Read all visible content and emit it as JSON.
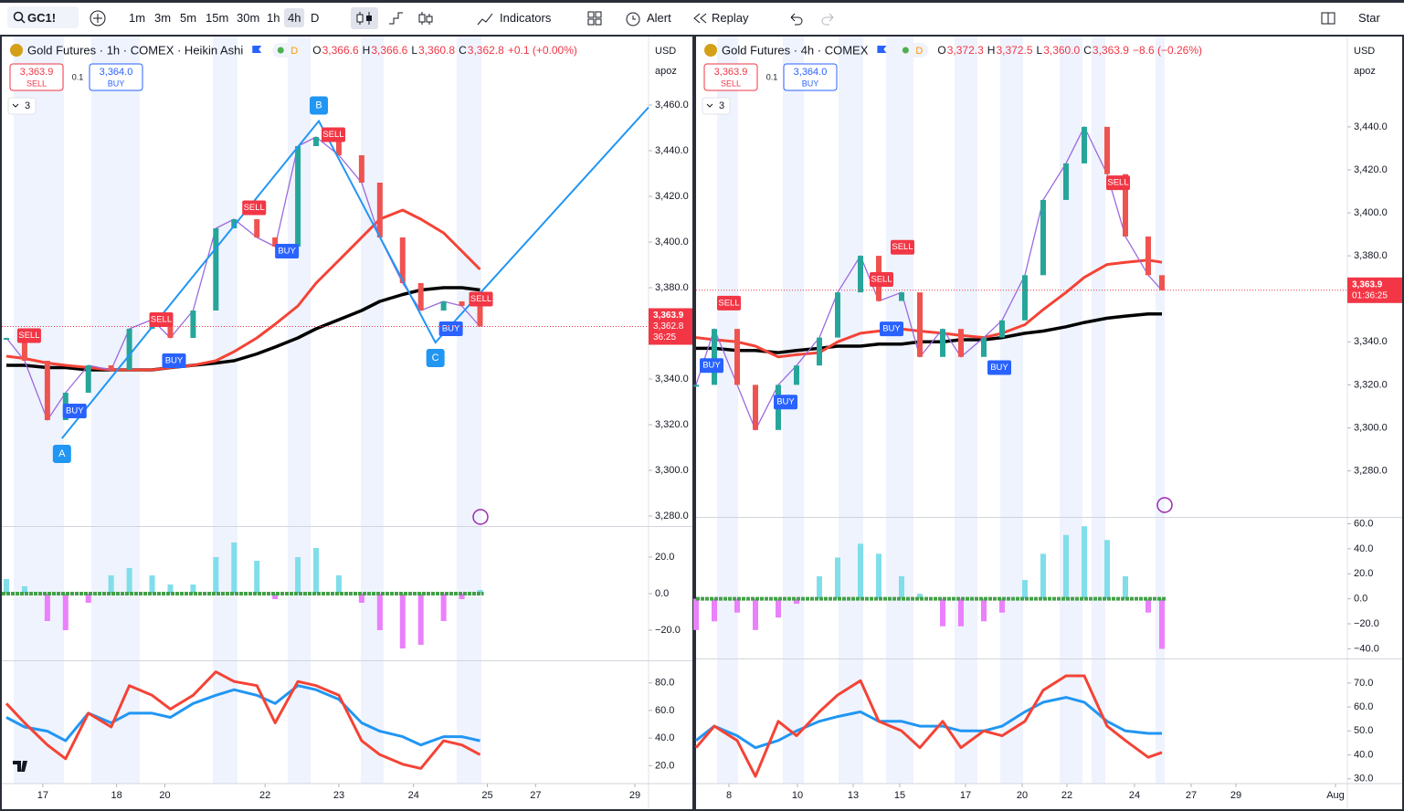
{
  "toolbar": {
    "symbol": "GC1!",
    "intervals": [
      "1m",
      "3m",
      "5m",
      "15m",
      "30m",
      "1h",
      "4h",
      "D"
    ],
    "active_interval_index": 6,
    "buttons": {
      "indicators": "Indicators",
      "alert": "Alert",
      "replay": "Replay",
      "star": "Star"
    }
  },
  "panels": [
    {
      "title": "Gold Futures · 1h · COMEX · Heikin Ashi",
      "badge": "D",
      "ohlc": [
        [
          "O",
          "3,366.6"
        ],
        [
          "H",
          "3,366.6"
        ],
        [
          "L",
          "3,360.8"
        ],
        [
          "C",
          "3,362.8"
        ]
      ],
      "change": "+0.1 (+0.00%)",
      "sell": {
        "price": "3,363.9",
        "label": "SELL"
      },
      "spread": "0.1",
      "buy": {
        "price": "3,364.0",
        "label": "BUY"
      },
      "currency": "USD",
      "scale_mode": "apoz",
      "indicator_count": "3",
      "last_price_labels": [
        "3,363.9",
        "3,362.8",
        "36:25"
      ],
      "xlim": [
        0,
        142
      ],
      "xticks": [
        {
          "value": 9,
          "label": "17"
        },
        {
          "value": 25.2,
          "label": "18"
        },
        {
          "value": 35.8,
          "label": "20"
        },
        {
          "value": 57.8,
          "label": "22"
        },
        {
          "value": 74,
          "label": "23"
        },
        {
          "value": 90.4,
          "label": "24"
        },
        {
          "value": 106.6,
          "label": "25"
        },
        {
          "value": 117.2,
          "label": "27"
        },
        {
          "value": 139,
          "label": "29"
        }
      ],
      "x": [
        1,
        5,
        10,
        14,
        19,
        24,
        28,
        33,
        37,
        42,
        47,
        51,
        56,
        60,
        65,
        69,
        74,
        79,
        83,
        88,
        92,
        97,
        101,
        105
      ],
      "price": {
        "ylim": [
          3276,
          3490
        ],
        "yticks": [
          {
            "value": 3280,
            "label": "3,280.0"
          },
          {
            "value": 3300,
            "label": "3,300.0"
          },
          {
            "value": 3320,
            "label": "3,320.0"
          },
          {
            "value": 3340,
            "label": "3,340.0"
          },
          {
            "value": 3360,
            "label": "3,360.0"
          },
          {
            "value": 3380,
            "label": "3,380.0"
          },
          {
            "value": 3400,
            "label": "3,400.0"
          },
          {
            "value": 3420,
            "label": "3,420.0"
          },
          {
            "value": 3440,
            "label": "3,440.0"
          },
          {
            "value": 3460,
            "label": "3,460.0"
          }
        ],
        "close": [
          3358,
          3348,
          3322,
          3334,
          3346,
          3344,
          3362,
          3366,
          3358,
          3370,
          3406,
          3410,
          3402,
          3398,
          3442,
          3446,
          3438,
          3426,
          3402,
          3382,
          3370,
          3374,
          3372,
          3363
        ],
        "ma_red": [
          3350,
          3349,
          3347,
          3346,
          3345,
          3344,
          3344,
          3344,
          3345,
          3346,
          3348,
          3352,
          3358,
          3364,
          3372,
          3382,
          3392,
          3402,
          3410,
          3414,
          3410,
          3404,
          3396,
          3388
        ],
        "ma_black": [
          3346,
          3346,
          3345,
          3345,
          3344,
          3344,
          3344,
          3344,
          3345,
          3346,
          3347,
          3348,
          3351,
          3354,
          3358,
          3362,
          3366,
          3370,
          3374,
          3377,
          3379,
          3380,
          3380,
          3379
        ]
      },
      "signals": [
        {
          "label": "SELL",
          "x": 6,
          "price": 3359
        },
        {
          "label": "BUY",
          "x": 16,
          "price": 3326
        },
        {
          "label": "SELL",
          "x": 35,
          "price": 3366
        },
        {
          "label": "BUY",
          "x": 37.8,
          "price": 3348
        },
        {
          "label": "SELL",
          "x": 55.4,
          "price": 3415
        },
        {
          "label": "BUY",
          "x": 62.6,
          "price": 3396
        },
        {
          "label": "SELL",
          "x": 72.8,
          "price": 3447
        },
        {
          "label": "BUY",
          "x": 98.6,
          "price": 3362
        },
        {
          "label": "SELL",
          "x": 105.2,
          "price": 3375
        }
      ],
      "pattern": [
        {
          "label": "A",
          "x": 13.2,
          "price": 3314
        },
        {
          "label": "B",
          "x": 69.6,
          "price": 3453
        },
        {
          "label": "C",
          "x": 95.2,
          "price": 3356
        },
        {
          "x": 142,
          "price": 3459
        }
      ],
      "macd": {
        "ylim": [
          -36,
          36
        ],
        "yticks": [
          {
            "value": 20,
            "label": "20.0"
          },
          {
            "value": 0,
            "label": "0.0"
          },
          {
            "value": -20,
            "label": "−20.0"
          }
        ],
        "values": [
          8,
          4,
          -15,
          -20,
          -5,
          10,
          14,
          10,
          5,
          5,
          20,
          28,
          18,
          -3,
          20,
          25,
          10,
          -5,
          -20,
          -30,
          -28,
          -15,
          -3,
          2
        ]
      },
      "rsi": {
        "ylim": [
          7,
          95
        ],
        "yticks": [
          {
            "value": 80,
            "label": "80.0"
          },
          {
            "value": 60,
            "label": "60.0"
          },
          {
            "value": 40,
            "label": "40.0"
          },
          {
            "value": 20,
            "label": "20.0"
          }
        ],
        "red": [
          65,
          51,
          35,
          25,
          58,
          48,
          78,
          71,
          61,
          71,
          88,
          81,
          78,
          51,
          81,
          78,
          71,
          38,
          28,
          21,
          18,
          38,
          35,
          28
        ],
        "blue": [
          55,
          48,
          45,
          38,
          58,
          51,
          58,
          58,
          55,
          65,
          71,
          75,
          71,
          65,
          78,
          75,
          68,
          51,
          45,
          41,
          35,
          41,
          41,
          38
        ]
      }
    },
    {
      "title": "Gold Futures · 4h · COMEX",
      "badge": "D",
      "ohlc": [
        [
          "O",
          "3,372.3"
        ],
        [
          "H",
          "3,372.5"
        ],
        [
          "L",
          "3,360.0"
        ],
        [
          "C",
          "3,363.9"
        ]
      ],
      "change": "−8.6 (−0.26%)",
      "sell": {
        "price": "3,363.9",
        "label": "SELL"
      },
      "spread": "0.1",
      "buy": {
        "price": "3,364.0",
        "label": "BUY"
      },
      "currency": "USD",
      "scale_mode": "apoz",
      "indicator_count": "3",
      "last_price_labels": [
        "3,363.9",
        "01:36:25"
      ],
      "xlim": [
        0,
        142.6
      ],
      "xticks": [
        {
          "value": 7.2,
          "label": "8"
        },
        {
          "value": 22.2,
          "label": "10"
        },
        {
          "value": 34.4,
          "label": "13"
        },
        {
          "value": 44.6,
          "label": "15"
        },
        {
          "value": 59,
          "label": "17"
        },
        {
          "value": 71.4,
          "label": "20"
        },
        {
          "value": 81.2,
          "label": "22"
        },
        {
          "value": 96,
          "label": "24"
        },
        {
          "value": 108.4,
          "label": "27"
        },
        {
          "value": 118.2,
          "label": "29"
        },
        {
          "value": 140,
          "label": "Aug"
        }
      ],
      "x": [
        0,
        4,
        9,
        13,
        18,
        22,
        27,
        31,
        36,
        40,
        45,
        49,
        54,
        58,
        63,
        67,
        72,
        76,
        81,
        85,
        90,
        94,
        99,
        102
      ],
      "price": {
        "ylim": [
          3259,
          3482
        ],
        "yticks": [
          {
            "value": 3280,
            "label": "3,280.0"
          },
          {
            "value": 3300,
            "label": "3,300.0"
          },
          {
            "value": 3320,
            "label": "3,320.0"
          },
          {
            "value": 3340,
            "label": "3,340.0"
          },
          {
            "value": 3360,
            "label": "3,360.0"
          },
          {
            "value": 3380,
            "label": "3,380.0"
          },
          {
            "value": 3400,
            "label": "3,400.0"
          },
          {
            "value": 3420,
            "label": "3,420.0"
          },
          {
            "value": 3440,
            "label": "3,440.0"
          }
        ],
        "close": [
          3320,
          3346,
          3320,
          3299,
          3320,
          3329,
          3342,
          3363,
          3380,
          3359,
          3363,
          3333,
          3346,
          3333,
          3342,
          3350,
          3371,
          3406,
          3423,
          3440,
          3418,
          3389,
          3371,
          3364
        ],
        "ma_red": [
          3342,
          3341,
          3340,
          3338,
          3333,
          3334,
          3335,
          3340,
          3344,
          3345,
          3346,
          3345,
          3344,
          3343,
          3342,
          3344,
          3348,
          3355,
          3363,
          3370,
          3376,
          3377,
          3378,
          3377
        ],
        "ma_black": [
          3337,
          3337,
          3336,
          3336,
          3335,
          3336,
          3337,
          3338,
          3338,
          3339,
          3339,
          3340,
          3340,
          3341,
          3341,
          3342,
          3344,
          3345,
          3347,
          3349,
          3351,
          3352,
          3353,
          3353
        ]
      },
      "signals": [
        {
          "label": "SELL",
          "x": 7.2,
          "price": 3358
        },
        {
          "label": "BUY",
          "x": 3.4,
          "price": 3329
        },
        {
          "label": "BUY",
          "x": 19.6,
          "price": 3312
        },
        {
          "label": "SELL",
          "x": 40.6,
          "price": 3369
        },
        {
          "label": "BUY",
          "x": 42.8,
          "price": 3346
        },
        {
          "label": "SELL",
          "x": 45.2,
          "price": 3384
        },
        {
          "label": "BUY",
          "x": 66.4,
          "price": 3328
        },
        {
          "label": "SELL",
          "x": 92.4,
          "price": 3414
        }
      ],
      "macd": {
        "ylim": [
          -47,
          64
        ],
        "yticks": [
          {
            "value": 60,
            "label": "60.0"
          },
          {
            "value": 40,
            "label": "40.0"
          },
          {
            "value": 20,
            "label": "20.0"
          },
          {
            "value": 0,
            "label": "0.0"
          },
          {
            "value": -20,
            "label": "−20.0"
          },
          {
            "value": -40,
            "label": "−40.0"
          }
        ],
        "values": [
          -25,
          -18,
          -11,
          -25,
          -15,
          -4,
          18,
          33,
          44,
          36,
          18,
          4,
          -22,
          -22,
          -18,
          -11,
          15,
          36,
          51,
          58,
          47,
          18,
          -11,
          -40
        ]
      },
      "rsi": {
        "ylim": [
          28,
          79.5
        ],
        "yticks": [
          {
            "value": 70,
            "label": "70.0"
          },
          {
            "value": 60,
            "label": "60.0"
          },
          {
            "value": 50,
            "label": "50.0"
          },
          {
            "value": 40,
            "label": "40.0"
          },
          {
            "value": 30,
            "label": "30.0"
          }
        ],
        "red": [
          43,
          52,
          46,
          31,
          54,
          48,
          58,
          65,
          71,
          54,
          50,
          43,
          54,
          43,
          50,
          48,
          54,
          67,
          73,
          73,
          52,
          46,
          39,
          41
        ],
        "blue": [
          46,
          52,
          48,
          43,
          46,
          50,
          54,
          56,
          58,
          54,
          54,
          52,
          52,
          50,
          50,
          52,
          58,
          62,
          64,
          62,
          54,
          50,
          49,
          49
        ]
      }
    }
  ]
}
